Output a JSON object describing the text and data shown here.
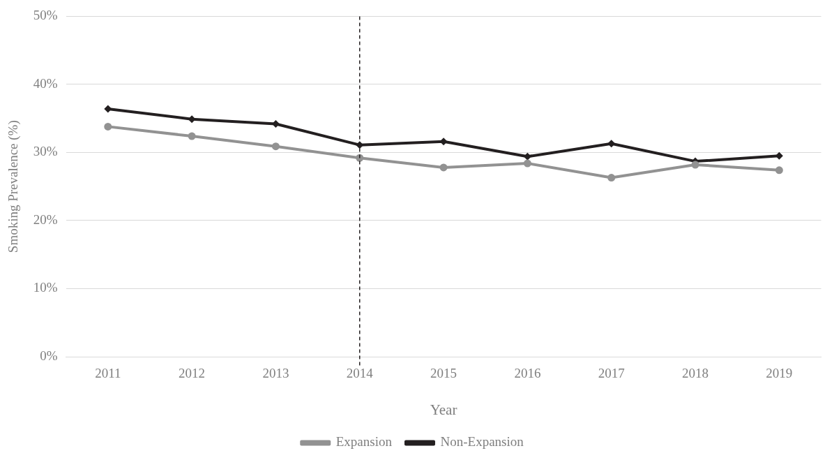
{
  "chart_data": {
    "type": "line",
    "xlabel": "Year",
    "ylabel": "Smoking Prevalence (%)",
    "categories": [
      "2011",
      "2012",
      "2013",
      "2014",
      "2015",
      "2016",
      "2017",
      "2018",
      "2019"
    ],
    "series": [
      {
        "name": "Expansion",
        "color": "#929292",
        "marker": "circle",
        "values": [
          33.8,
          32.4,
          30.9,
          29.2,
          27.8,
          28.4,
          26.3,
          28.2,
          27.4
        ]
      },
      {
        "name": "Non-Expansion",
        "color": "#231f20",
        "marker": "diamond",
        "values": [
          36.4,
          34.9,
          34.2,
          31.1,
          31.6,
          29.4,
          31.3,
          28.7,
          29.5
        ]
      }
    ],
    "ylim": [
      0,
      50
    ],
    "yticks": [
      {
        "value": 0,
        "label": "0%"
      },
      {
        "value": 10,
        "label": "10%"
      },
      {
        "value": 20,
        "label": "20%"
      },
      {
        "value": 30,
        "label": "30%"
      },
      {
        "value": 40,
        "label": "40%"
      },
      {
        "value": 50,
        "label": "50%"
      }
    ],
    "grid": "y",
    "legend": "bottom",
    "ref_lines": [
      {
        "axis": "x",
        "value": "2014",
        "color": "#231f20",
        "line_style": "dashed"
      }
    ]
  }
}
